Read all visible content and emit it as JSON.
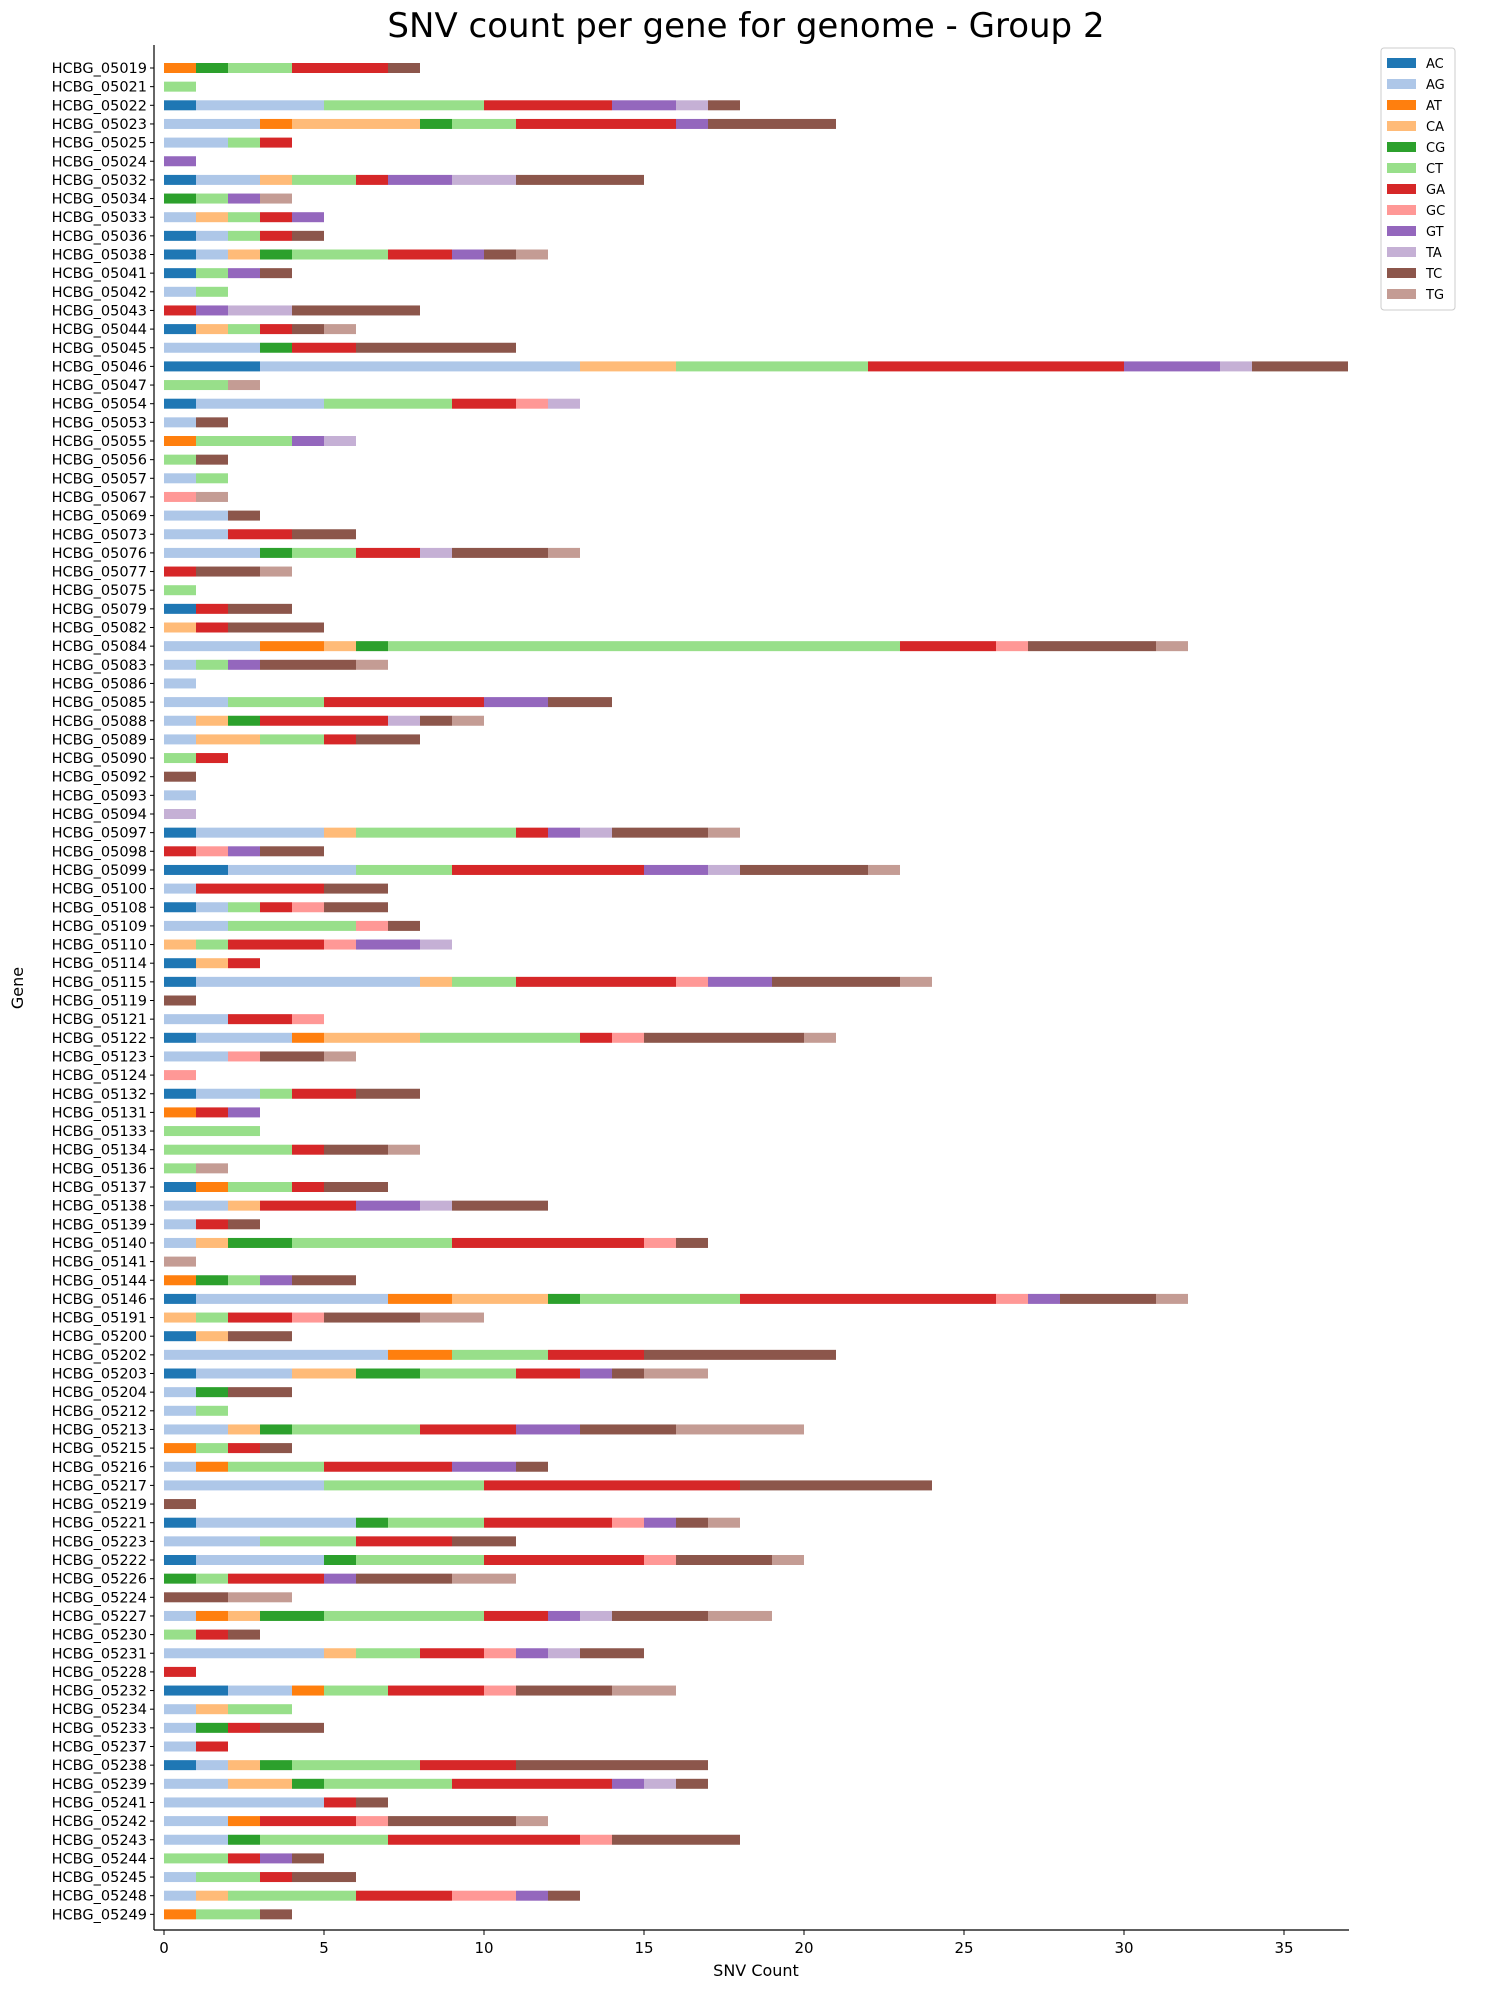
{
  "chart_data": {
    "type": "bar",
    "orientation": "horizontal",
    "stacked": true,
    "title": "SNV count per gene for genome - Group 2",
    "xlabel": "SNV Count",
    "ylabel": "Gene",
    "xlim": [
      0,
      37
    ],
    "xticks": [
      0,
      5,
      10,
      15,
      20,
      25,
      30,
      35
    ],
    "grid": false,
    "legend_position": "top-right-outside",
    "series_names": [
      "AC",
      "AG",
      "AT",
      "CA",
      "CG",
      "CT",
      "GA",
      "GC",
      "GT",
      "TA",
      "TC",
      "TG"
    ],
    "series_colors": [
      "#1f77b4",
      "#aec7e8",
      "#ff7f0e",
      "#ffbb78",
      "#2ca02c",
      "#98df8a",
      "#d62728",
      "#ff9896",
      "#9467bd",
      "#c5b0d5",
      "#8c564b",
      "#c49c94"
    ],
    "categories": [
      "HCBG_05019",
      "HCBG_05021",
      "HCBG_05022",
      "HCBG_05023",
      "HCBG_05025",
      "HCBG_05024",
      "HCBG_05032",
      "HCBG_05034",
      "HCBG_05033",
      "HCBG_05036",
      "HCBG_05038",
      "HCBG_05041",
      "HCBG_05042",
      "HCBG_05043",
      "HCBG_05044",
      "HCBG_05045",
      "HCBG_05046",
      "HCBG_05047",
      "HCBG_05054",
      "HCBG_05053",
      "HCBG_05055",
      "HCBG_05056",
      "HCBG_05057",
      "HCBG_05067",
      "HCBG_05069",
      "HCBG_05073",
      "HCBG_05076",
      "HCBG_05077",
      "HCBG_05075",
      "HCBG_05079",
      "HCBG_05082",
      "HCBG_05084",
      "HCBG_05083",
      "HCBG_05086",
      "HCBG_05085",
      "HCBG_05088",
      "HCBG_05089",
      "HCBG_05090",
      "HCBG_05092",
      "HCBG_05093",
      "HCBG_05094",
      "HCBG_05097",
      "HCBG_05098",
      "HCBG_05099",
      "HCBG_05100",
      "HCBG_05108",
      "HCBG_05109",
      "HCBG_05110",
      "HCBG_05114",
      "HCBG_05115",
      "HCBG_05119",
      "HCBG_05121",
      "HCBG_05122",
      "HCBG_05123",
      "HCBG_05124",
      "HCBG_05132",
      "HCBG_05131",
      "HCBG_05133",
      "HCBG_05134",
      "HCBG_05136",
      "HCBG_05137",
      "HCBG_05138",
      "HCBG_05139",
      "HCBG_05140",
      "HCBG_05141",
      "HCBG_05144",
      "HCBG_05146",
      "HCBG_05191",
      "HCBG_05200",
      "HCBG_05202",
      "HCBG_05203",
      "HCBG_05204",
      "HCBG_05212",
      "HCBG_05213",
      "HCBG_05215",
      "HCBG_05216",
      "HCBG_05217",
      "HCBG_05219",
      "HCBG_05221",
      "HCBG_05223",
      "HCBG_05222",
      "HCBG_05226",
      "HCBG_05224",
      "HCBG_05227",
      "HCBG_05230",
      "HCBG_05231",
      "HCBG_05228",
      "HCBG_05232",
      "HCBG_05234",
      "HCBG_05233",
      "HCBG_05237",
      "HCBG_05238",
      "HCBG_05239",
      "HCBG_05241",
      "HCBG_05242",
      "HCBG_05243",
      "HCBG_05244",
      "HCBG_05245",
      "HCBG_05248",
      "HCBG_05249"
    ],
    "values": [
      [
        0,
        0,
        1,
        0,
        1,
        2,
        3,
        0,
        0,
        0,
        1,
        0
      ],
      [
        0,
        0,
        0,
        0,
        0,
        1,
        0,
        0,
        0,
        0,
        0,
        0
      ],
      [
        1,
        4,
        0,
        0,
        0,
        5,
        4,
        0,
        2,
        1,
        1,
        0
      ],
      [
        0,
        3,
        1,
        4,
        1,
        2,
        5,
        0,
        1,
        0,
        4,
        0
      ],
      [
        0,
        2,
        0,
        0,
        0,
        1,
        1,
        0,
        0,
        0,
        0,
        0
      ],
      [
        0,
        0,
        0,
        0,
        0,
        0,
        0,
        0,
        1,
        0,
        0,
        0
      ],
      [
        1,
        2,
        0,
        1,
        0,
        2,
        1,
        0,
        2,
        2,
        4,
        0
      ],
      [
        0,
        0,
        0,
        0,
        1,
        1,
        0,
        0,
        1,
        0,
        0,
        1
      ],
      [
        0,
        1,
        0,
        1,
        0,
        1,
        1,
        0,
        1,
        0,
        0,
        0
      ],
      [
        1,
        1,
        0,
        0,
        0,
        1,
        1,
        0,
        0,
        0,
        1,
        0
      ],
      [
        1,
        1,
        0,
        1,
        1,
        3,
        2,
        0,
        1,
        0,
        1,
        1
      ],
      [
        1,
        0,
        0,
        0,
        0,
        1,
        0,
        0,
        1,
        0,
        1,
        0
      ],
      [
        0,
        1,
        0,
        0,
        0,
        1,
        0,
        0,
        0,
        0,
        0,
        0
      ],
      [
        0,
        0,
        0,
        0,
        0,
        0,
        1,
        0,
        1,
        2,
        4,
        0
      ],
      [
        1,
        0,
        0,
        1,
        0,
        1,
        1,
        0,
        0,
        0,
        1,
        1
      ],
      [
        0,
        3,
        0,
        0,
        1,
        0,
        2,
        0,
        0,
        0,
        5,
        0
      ],
      [
        3,
        10,
        0,
        3,
        0,
        6,
        8,
        0,
        3,
        1,
        3,
        0
      ],
      [
        0,
        0,
        0,
        0,
        0,
        2,
        0,
        0,
        0,
        0,
        0,
        1
      ],
      [
        1,
        4,
        0,
        0,
        0,
        4,
        2,
        1,
        0,
        1,
        0,
        0
      ],
      [
        0,
        1,
        0,
        0,
        0,
        0,
        0,
        0,
        0,
        0,
        1,
        0
      ],
      [
        0,
        0,
        1,
        0,
        0,
        3,
        0,
        0,
        1,
        1,
        0,
        0
      ],
      [
        0,
        0,
        0,
        0,
        0,
        1,
        0,
        0,
        0,
        0,
        1,
        0
      ],
      [
        0,
        1,
        0,
        0,
        0,
        1,
        0,
        0,
        0,
        0,
        0,
        0
      ],
      [
        0,
        0,
        0,
        0,
        0,
        0,
        0,
        1,
        0,
        0,
        0,
        1
      ],
      [
        0,
        2,
        0,
        0,
        0,
        0,
        0,
        0,
        0,
        0,
        1,
        0
      ],
      [
        0,
        2,
        0,
        0,
        0,
        0,
        2,
        0,
        0,
        0,
        2,
        0
      ],
      [
        0,
        3,
        0,
        0,
        1,
        2,
        2,
        0,
        0,
        1,
        3,
        1
      ],
      [
        0,
        0,
        0,
        0,
        0,
        0,
        1,
        0,
        0,
        0,
        2,
        1
      ],
      [
        0,
        0,
        0,
        0,
        0,
        1,
        0,
        0,
        0,
        0,
        0,
        0
      ],
      [
        1,
        0,
        0,
        0,
        0,
        0,
        1,
        0,
        0,
        0,
        2,
        0
      ],
      [
        0,
        0,
        0,
        1,
        0,
        0,
        1,
        0,
        0,
        0,
        3,
        0
      ],
      [
        0,
        3,
        2,
        1,
        1,
        16,
        3,
        1,
        0,
        0,
        4,
        1
      ],
      [
        0,
        1,
        0,
        0,
        0,
        1,
        0,
        0,
        1,
        0,
        3,
        1
      ],
      [
        0,
        1,
        0,
        0,
        0,
        0,
        0,
        0,
        0,
        0,
        0,
        0
      ],
      [
        0,
        2,
        0,
        0,
        0,
        3,
        5,
        0,
        2,
        0,
        2,
        0
      ],
      [
        0,
        1,
        0,
        1,
        1,
        0,
        4,
        0,
        0,
        1,
        1,
        1
      ],
      [
        0,
        1,
        0,
        2,
        0,
        2,
        1,
        0,
        0,
        0,
        2,
        0
      ],
      [
        0,
        0,
        0,
        0,
        0,
        1,
        1,
        0,
        0,
        0,
        0,
        0
      ],
      [
        0,
        0,
        0,
        0,
        0,
        0,
        0,
        0,
        0,
        0,
        1,
        0
      ],
      [
        0,
        1,
        0,
        0,
        0,
        0,
        0,
        0,
        0,
        0,
        0,
        0
      ],
      [
        0,
        0,
        0,
        0,
        0,
        0,
        0,
        0,
        0,
        1,
        0,
        0
      ],
      [
        1,
        4,
        0,
        1,
        0,
        5,
        1,
        0,
        1,
        1,
        3,
        1
      ],
      [
        0,
        0,
        0,
        0,
        0,
        0,
        1,
        1,
        1,
        0,
        2,
        0
      ],
      [
        2,
        4,
        0,
        0,
        0,
        3,
        6,
        0,
        2,
        1,
        4,
        1
      ],
      [
        0,
        1,
        0,
        0,
        0,
        0,
        4,
        0,
        0,
        0,
        2,
        0
      ],
      [
        1,
        1,
        0,
        0,
        0,
        1,
        1,
        1,
        0,
        0,
        2,
        0
      ],
      [
        0,
        2,
        0,
        0,
        0,
        4,
        0,
        1,
        0,
        0,
        1,
        0
      ],
      [
        0,
        0,
        0,
        1,
        0,
        1,
        3,
        1,
        2,
        1,
        0,
        0
      ],
      [
        1,
        0,
        0,
        1,
        0,
        0,
        1,
        0,
        0,
        0,
        0,
        0
      ],
      [
        1,
        7,
        0,
        1,
        0,
        2,
        5,
        1,
        2,
        0,
        4,
        1
      ],
      [
        0,
        0,
        0,
        0,
        0,
        0,
        0,
        0,
        0,
        0,
        1,
        0
      ],
      [
        0,
        2,
        0,
        0,
        0,
        0,
        2,
        1,
        0,
        0,
        0,
        0
      ],
      [
        1,
        3,
        1,
        3,
        0,
        5,
        1,
        1,
        0,
        0,
        5,
        1
      ],
      [
        0,
        2,
        0,
        0,
        0,
        0,
        0,
        1,
        0,
        0,
        2,
        1
      ],
      [
        0,
        0,
        0,
        0,
        0,
        0,
        0,
        1,
        0,
        0,
        0,
        0
      ],
      [
        1,
        2,
        0,
        0,
        0,
        1,
        2,
        0,
        0,
        0,
        2,
        0
      ],
      [
        0,
        0,
        1,
        0,
        0,
        0,
        1,
        0,
        1,
        0,
        0,
        0
      ],
      [
        0,
        0,
        0,
        0,
        0,
        3,
        0,
        0,
        0,
        0,
        0,
        0
      ],
      [
        0,
        0,
        0,
        0,
        0,
        4,
        1,
        0,
        0,
        0,
        2,
        1
      ],
      [
        0,
        0,
        0,
        0,
        0,
        1,
        0,
        0,
        0,
        0,
        0,
        1
      ],
      [
        1,
        0,
        1,
        0,
        0,
        2,
        1,
        0,
        0,
        0,
        2,
        0
      ],
      [
        0,
        2,
        0,
        1,
        0,
        0,
        3,
        0,
        2,
        1,
        3,
        0
      ],
      [
        0,
        1,
        0,
        0,
        0,
        0,
        1,
        0,
        0,
        0,
        1,
        0
      ],
      [
        0,
        1,
        0,
        1,
        2,
        5,
        6,
        1,
        0,
        0,
        1,
        0
      ],
      [
        0,
        0,
        0,
        0,
        0,
        0,
        0,
        0,
        0,
        0,
        0,
        1
      ],
      [
        0,
        0,
        1,
        0,
        1,
        1,
        0,
        0,
        1,
        0,
        2,
        0
      ],
      [
        1,
        6,
        2,
        3,
        1,
        5,
        8,
        1,
        1,
        0,
        3,
        1
      ],
      [
        0,
        0,
        0,
        1,
        0,
        1,
        2,
        1,
        0,
        0,
        3,
        2
      ],
      [
        1,
        0,
        0,
        1,
        0,
        0,
        0,
        0,
        0,
        0,
        2,
        0
      ],
      [
        0,
        7,
        2,
        0,
        0,
        3,
        3,
        0,
        0,
        0,
        6,
        0
      ],
      [
        1,
        3,
        0,
        2,
        2,
        3,
        2,
        0,
        1,
        0,
        1,
        2
      ],
      [
        0,
        1,
        0,
        0,
        1,
        0,
        0,
        0,
        0,
        0,
        2,
        0
      ],
      [
        0,
        1,
        0,
        0,
        0,
        1,
        0,
        0,
        0,
        0,
        0,
        0
      ],
      [
        0,
        2,
        0,
        1,
        1,
        4,
        3,
        0,
        2,
        0,
        3,
        4
      ],
      [
        0,
        0,
        1,
        0,
        0,
        1,
        1,
        0,
        0,
        0,
        1,
        0
      ],
      [
        0,
        1,
        1,
        0,
        0,
        3,
        4,
        0,
        2,
        0,
        1,
        0
      ],
      [
        0,
        5,
        0,
        0,
        0,
        5,
        8,
        0,
        0,
        0,
        6,
        0
      ],
      [
        0,
        0,
        0,
        0,
        0,
        0,
        0,
        0,
        0,
        0,
        1,
        0
      ],
      [
        1,
        5,
        0,
        0,
        1,
        3,
        4,
        1,
        1,
        0,
        1,
        1
      ],
      [
        0,
        3,
        0,
        0,
        0,
        3,
        3,
        0,
        0,
        0,
        2,
        0
      ],
      [
        1,
        4,
        0,
        0,
        1,
        4,
        5,
        1,
        0,
        0,
        3,
        1
      ],
      [
        0,
        0,
        0,
        0,
        1,
        1,
        3,
        0,
        1,
        0,
        3,
        2
      ],
      [
        0,
        0,
        0,
        0,
        0,
        0,
        0,
        0,
        0,
        0,
        2,
        2
      ],
      [
        0,
        1,
        1,
        1,
        2,
        5,
        2,
        0,
        1,
        1,
        3,
        2
      ],
      [
        0,
        0,
        0,
        0,
        0,
        1,
        1,
        0,
        0,
        0,
        1,
        0
      ],
      [
        0,
        5,
        0,
        1,
        0,
        2,
        2,
        1,
        1,
        1,
        2,
        0
      ],
      [
        0,
        0,
        0,
        0,
        0,
        0,
        1,
        0,
        0,
        0,
        0,
        0
      ],
      [
        2,
        2,
        1,
        0,
        0,
        2,
        3,
        1,
        0,
        0,
        3,
        2
      ],
      [
        0,
        1,
        0,
        1,
        0,
        2,
        0,
        0,
        0,
        0,
        0,
        0
      ],
      [
        0,
        1,
        0,
        0,
        1,
        0,
        1,
        0,
        0,
        0,
        2,
        0
      ],
      [
        0,
        1,
        0,
        0,
        0,
        0,
        1,
        0,
        0,
        0,
        0,
        0
      ],
      [
        1,
        1,
        0,
        1,
        1,
        4,
        3,
        0,
        0,
        0,
        6,
        0
      ],
      [
        0,
        2,
        0,
        2,
        1,
        4,
        5,
        0,
        1,
        1,
        1,
        0
      ],
      [
        0,
        5,
        0,
        0,
        0,
        0,
        1,
        0,
        0,
        0,
        1,
        0
      ],
      [
        0,
        2,
        1,
        0,
        0,
        0,
        3,
        1,
        0,
        0,
        4,
        1
      ],
      [
        0,
        2,
        0,
        0,
        1,
        4,
        6,
        1,
        0,
        0,
        4,
        0
      ],
      [
        0,
        0,
        0,
        0,
        0,
        2,
        1,
        0,
        1,
        0,
        1,
        0
      ],
      [
        0,
        1,
        0,
        0,
        0,
        2,
        1,
        0,
        0,
        0,
        2,
        0
      ],
      [
        0,
        1,
        0,
        1,
        0,
        4,
        3,
        2,
        1,
        0,
        1,
        0
      ],
      [
        0,
        0,
        1,
        0,
        0,
        2,
        0,
        0,
        0,
        0,
        1,
        0
      ]
    ]
  }
}
